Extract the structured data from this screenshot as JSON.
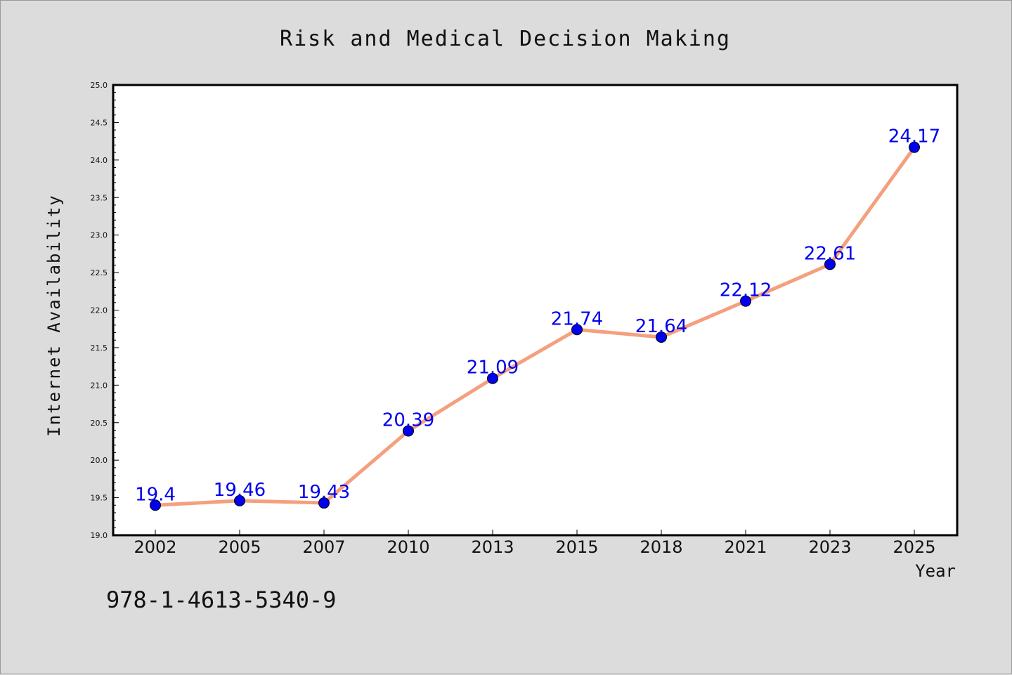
{
  "chart_data": {
    "type": "line",
    "title": "Risk and Medical Decision Making",
    "xlabel": "Year",
    "ylabel": "Internet Availability",
    "categories": [
      "2002",
      "2005",
      "2007",
      "2010",
      "2013",
      "2015",
      "2018",
      "2021",
      "2023",
      "2025"
    ],
    "series": [
      {
        "values": [
          19.4,
          19.46,
          19.43,
          20.39,
          21.09,
          21.74,
          21.64,
          22.12,
          22.61,
          24.17
        ]
      }
    ],
    "data_labels": [
      "19.4",
      "19.46",
      "19.43",
      "20.39",
      "21.09",
      "21.74",
      "21.64",
      "22.12",
      "22.61",
      "24.17"
    ],
    "ylim": [
      19.0,
      25.0
    ],
    "yticks": [
      "19.0",
      "19.5",
      "20.0",
      "20.5",
      "21.0",
      "21.5",
      "22.0",
      "22.5",
      "23.0",
      "23.5",
      "24.0",
      "24.5",
      "25.0"
    ],
    "grid": false,
    "legend": "none",
    "line_color": "#f4a07f",
    "marker_color": "#0000ee",
    "label_color": "#0000ee",
    "background": "#dcdcdc",
    "plot_background": "#ffffff"
  },
  "footnote": "978-1-4613-5340-9"
}
